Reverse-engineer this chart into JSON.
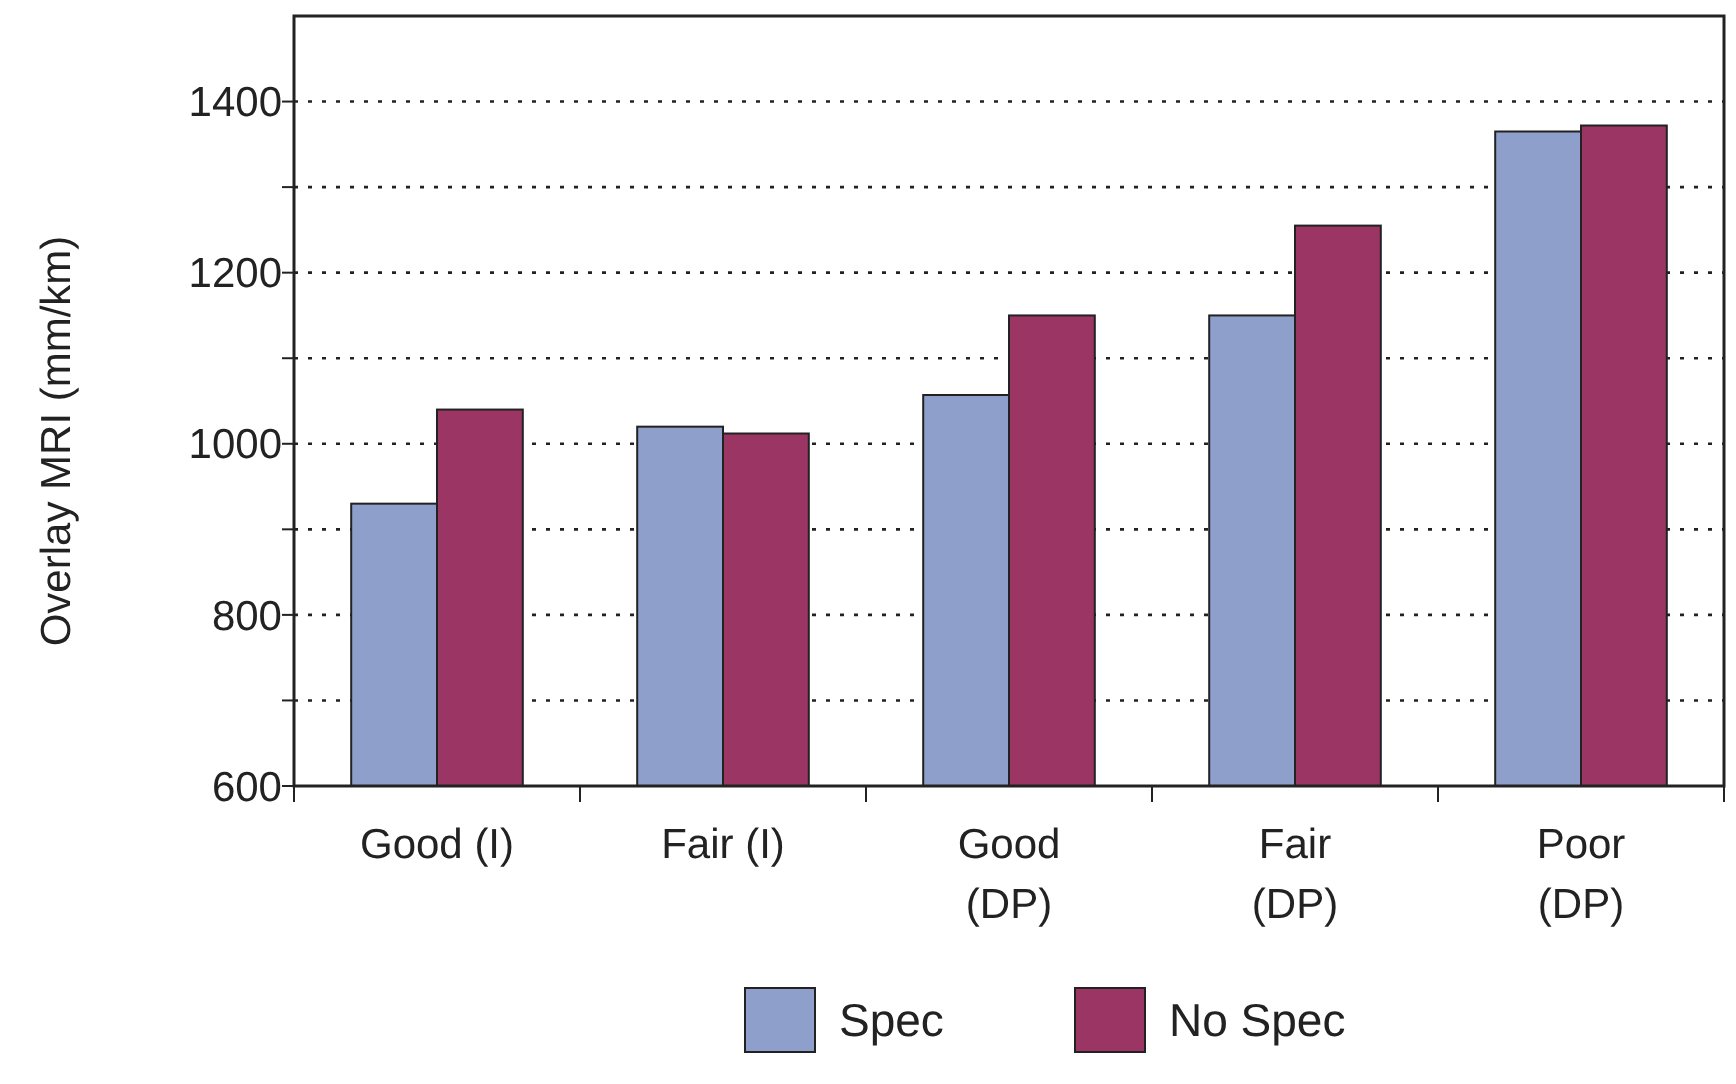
{
  "chart_data": {
    "type": "bar",
    "ylabel": "Overlay MRI (mm/km)",
    "categories": [
      "Good (I)",
      "Fair (I)",
      "Good\n(DP)",
      "Fair\n(DP)",
      "Poor\n(DP)"
    ],
    "series": [
      {
        "name": "Spec",
        "color": "#8e9fcb",
        "values": [
          930,
          1020,
          1057,
          1150,
          1365
        ]
      },
      {
        "name": "No Spec",
        "color": "#9b3563",
        "values": [
          1040,
          1012,
          1150,
          1255,
          1372
        ]
      }
    ],
    "ylim": [
      600,
      1500
    ],
    "yticks": [
      600,
      {
        "value": 700,
        "label": null
      },
      800,
      {
        "value": 900,
        "label": null
      },
      1000,
      {
        "value": 1100,
        "label": null
      },
      1200,
      {
        "value": 1300,
        "label": null
      },
      1400
    ],
    "grid": "y",
    "legend": "bottom"
  }
}
